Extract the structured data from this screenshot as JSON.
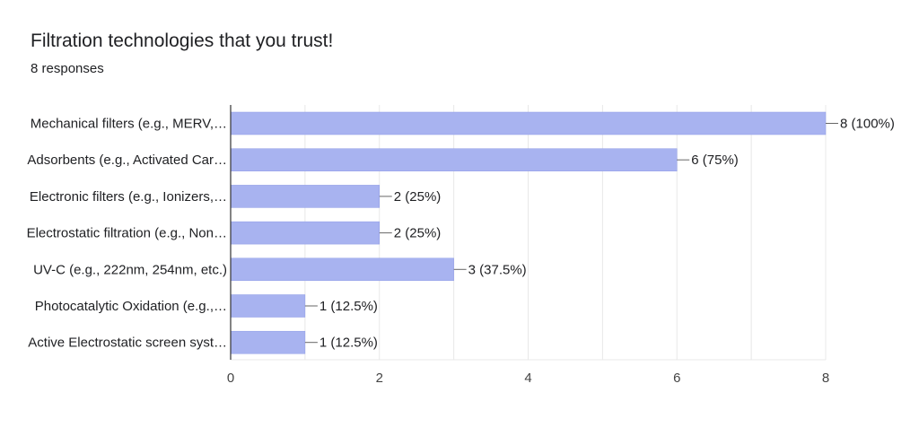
{
  "title": "Filtration technologies that you trust!",
  "subtitle": "8 responses",
  "colors": {
    "bar": "#a8b3f0",
    "bar_stroke": "#8e9be6",
    "grid": "#e8e8e8",
    "axis": "#333333"
  },
  "chart_data": {
    "type": "bar",
    "orientation": "horizontal",
    "categories": [
      "Mechanical filters (e.g., MERV,…",
      "Adsorbents (e.g., Activated Car…",
      "Electronic filters (e.g., Ionizers,…",
      "Electrostatic filtration (e.g., Non…",
      "UV-C (e.g., 222nm, 254nm, etc.)",
      "Photocatalytic Oxidation (e.g.,…",
      "Active Electrostatic screen syst…"
    ],
    "values": [
      8,
      6,
      2,
      2,
      3,
      1,
      1
    ],
    "value_labels": [
      "8 (100%)",
      "6 (75%)",
      "2 (25%)",
      "2 (25%)",
      "3 (37.5%)",
      "1 (12.5%)",
      "1 (12.5%)"
    ],
    "xlim": [
      0,
      8
    ],
    "xticks": [
      0,
      2,
      4,
      6,
      8
    ],
    "grid": true,
    "xlabel": "",
    "ylabel": ""
  }
}
